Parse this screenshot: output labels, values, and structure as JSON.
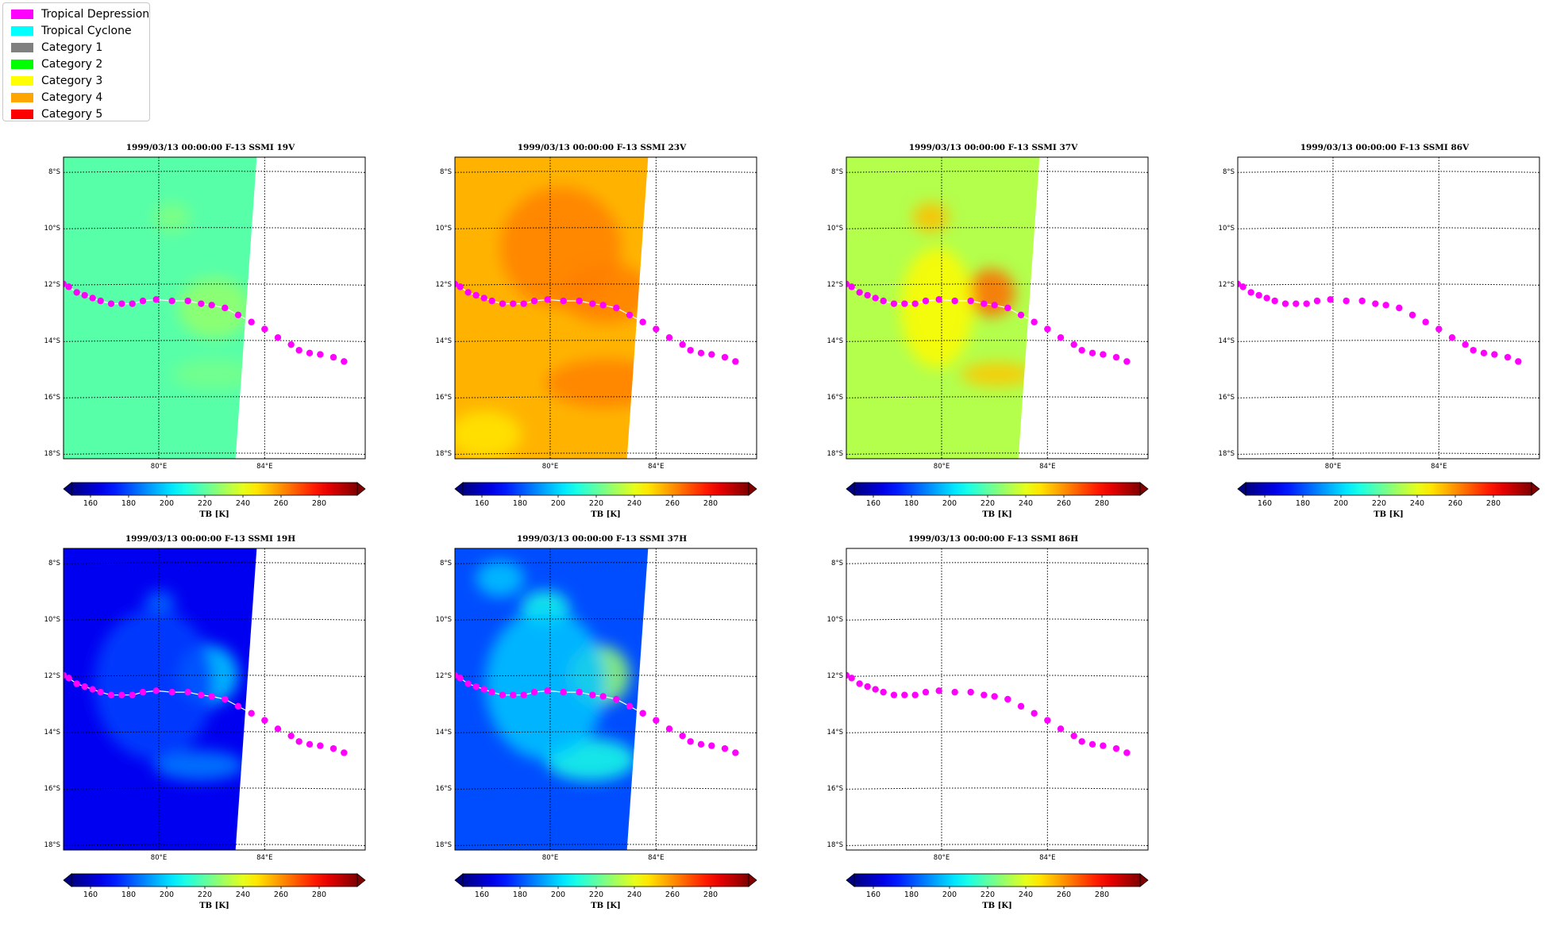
{
  "legend": [
    {
      "label": "Tropical Depression",
      "color": "#ff00ff"
    },
    {
      "label": "Tropical Cyclone",
      "color": "#00ffff"
    },
    {
      "label": "Category 1",
      "color": "#808080"
    },
    {
      "label": "Category 2",
      "color": "#00ff00"
    },
    {
      "label": "Category 3",
      "color": "#ffff00"
    },
    {
      "label": "Category 4",
      "color": "#ffa500"
    },
    {
      "label": "Category 5",
      "color": "#ff0000"
    }
  ],
  "panels": [
    {
      "title": "1999/03/13 00:00:00  F-13 SSMI 19V",
      "channel": "19V",
      "has_swath": true,
      "field": "19V",
      "show_colorbar": true
    },
    {
      "title": "1999/03/13 00:00:00  F-13 SSMI 23V",
      "channel": "23V",
      "has_swath": true,
      "field": "23V",
      "show_colorbar": true
    },
    {
      "title": "1999/03/13 00:00:00  F-13 SSMI 37V",
      "channel": "37V",
      "has_swath": true,
      "field": "37V",
      "show_colorbar": true
    },
    {
      "title": "1999/03/13 00:00:00  F-13 SSMI 86V",
      "channel": "86V",
      "has_swath": false,
      "field": "none",
      "show_colorbar": true
    },
    {
      "title": "1999/03/13 00:00:00  F-13 SSMI 19H",
      "channel": "19H",
      "has_swath": true,
      "field": "19H",
      "show_colorbar": true
    },
    {
      "title": "1999/03/13 00:00:00  F-13 SSMI 37H",
      "channel": "37H",
      "has_swath": true,
      "field": "37H",
      "show_colorbar": true
    },
    {
      "title": "1999/03/13 00:00:00  F-13 SSMI 86H",
      "channel": "86H",
      "has_swath": false,
      "field": "none",
      "show_colorbar": true
    }
  ],
  "map": {
    "lat_labels": [
      "8°S",
      "10°S",
      "12°S",
      "14°S",
      "16°S",
      "18°S"
    ],
    "lat_values": [
      -8,
      -10,
      -12,
      -14,
      -16,
      -18
    ],
    "lon_labels": [
      "80°E",
      "84°E"
    ],
    "lon_values": [
      80,
      84
    ],
    "lon_range": [
      76.4,
      87.8
    ],
    "lat_range": [
      -18.2,
      -7.5
    ]
  },
  "colorbar": {
    "label": "TB [K]",
    "ticks": [
      "160",
      "180",
      "200",
      "220",
      "240",
      "260",
      "280"
    ],
    "tick_values": [
      160,
      180,
      200,
      220,
      240,
      260,
      280
    ],
    "vmin": 150,
    "vmax": 300,
    "colormap": "jet"
  },
  "track": {
    "color": "#ff00ff",
    "line_color": "#ffffff",
    "points": [
      {
        "lon": 76.4,
        "lat": -12.0
      },
      {
        "lon": 76.6,
        "lat": -12.1
      },
      {
        "lon": 76.9,
        "lat": -12.3
      },
      {
        "lon": 77.2,
        "lat": -12.4
      },
      {
        "lon": 77.5,
        "lat": -12.5
      },
      {
        "lon": 77.8,
        "lat": -12.6
      },
      {
        "lon": 78.2,
        "lat": -12.7
      },
      {
        "lon": 78.6,
        "lat": -12.7
      },
      {
        "lon": 79.0,
        "lat": -12.7
      },
      {
        "lon": 79.4,
        "lat": -12.6
      },
      {
        "lon": 79.9,
        "lat": -12.55
      },
      {
        "lon": 80.5,
        "lat": -12.6
      },
      {
        "lon": 81.1,
        "lat": -12.6
      },
      {
        "lon": 81.6,
        "lat": -12.7
      },
      {
        "lon": 82.0,
        "lat": -12.75
      },
      {
        "lon": 82.5,
        "lat": -12.85
      },
      {
        "lon": 83.0,
        "lat": -13.1
      },
      {
        "lon": 83.5,
        "lat": -13.35
      },
      {
        "lon": 84.0,
        "lat": -13.6
      },
      {
        "lon": 84.5,
        "lat": -13.9
      },
      {
        "lon": 85.0,
        "lat": -14.15
      },
      {
        "lon": 85.3,
        "lat": -14.35
      },
      {
        "lon": 85.7,
        "lat": -14.45
      },
      {
        "lon": 86.1,
        "lat": -14.5
      },
      {
        "lon": 86.6,
        "lat": -14.6
      },
      {
        "lon": 87.0,
        "lat": -14.75
      }
    ]
  }
}
